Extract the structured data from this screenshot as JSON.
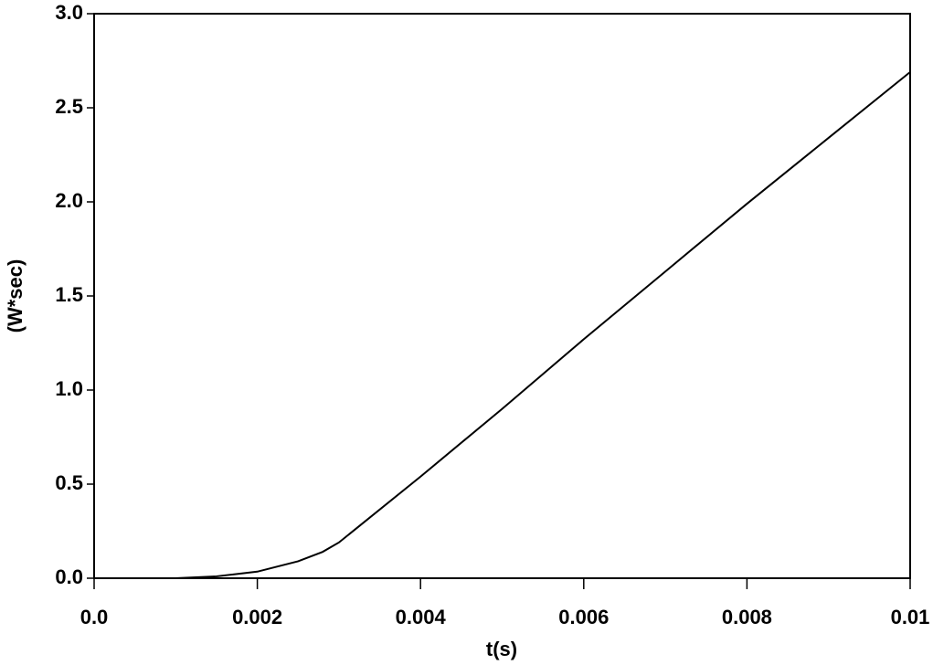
{
  "chart_data": {
    "type": "line",
    "xlabel": "t(s)",
    "ylabel": "(W*sec)",
    "x": [
      0,
      0.001,
      0.0015,
      0.002,
      0.0025,
      0.0028,
      0.003,
      0.0032,
      0.004,
      0.005,
      0.006,
      0.007,
      0.008,
      0.009,
      0.01
    ],
    "series": [
      {
        "color": "#000000",
        "values": [
          0,
          0,
          0.01,
          0.035,
          0.09,
          0.14,
          0.19,
          0.26,
          0.54,
          0.9,
          1.27,
          1.63,
          1.99,
          2.34,
          2.69
        ]
      }
    ],
    "xlim": [
      0,
      0.01
    ],
    "ylim": [
      0,
      3
    ],
    "xticks": [
      {
        "value": 0,
        "label": "0.0"
      },
      0.002,
      0.004,
      0.006,
      0.008,
      0.01
    ],
    "yticks": [
      {
        "value": 0,
        "label": "0.0"
      },
      0.5,
      {
        "value": 1,
        "label": "1.0"
      },
      1.5,
      {
        "value": 2,
        "label": "2.0"
      },
      2.5,
      {
        "value": 3,
        "label": "3.0"
      }
    ]
  }
}
